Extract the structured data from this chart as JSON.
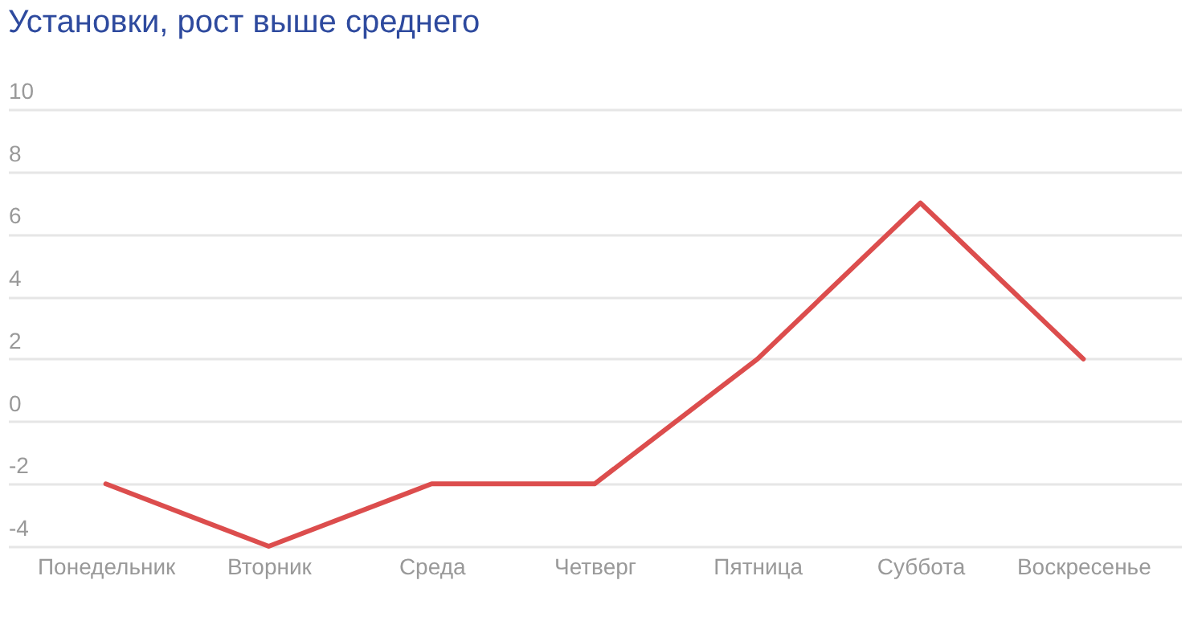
{
  "chart_data": {
    "type": "line",
    "title": "Установки, рост выше среднего",
    "categories": [
      "Понедельник",
      "Вторник",
      "Среда",
      "Четверг",
      "Пятница",
      "Суббота",
      "Воскресенье"
    ],
    "series": [
      {
        "color": "#dc4d4d",
        "values": [
          -2,
          -4,
          -2,
          -2,
          2,
          7,
          2
        ]
      }
    ],
    "ylim": [
      -4,
      10
    ],
    "yticks": [
      -4,
      -2,
      0,
      2,
      4,
      6,
      8,
      10
    ],
    "grid": "y"
  }
}
